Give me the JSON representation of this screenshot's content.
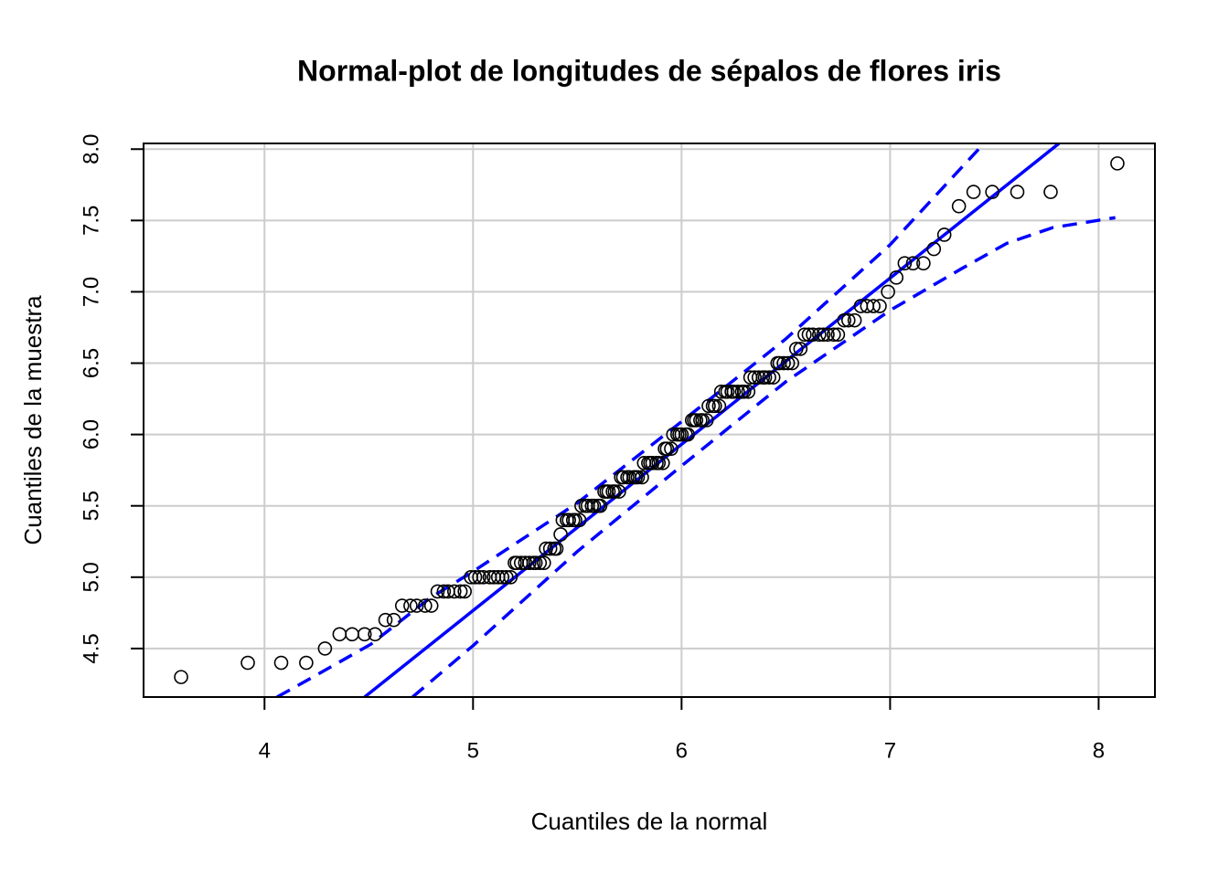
{
  "chart_data": {
    "type": "scatter",
    "title": "Normal-plot de longitudes de sépalos de flores iris",
    "xlabel": "Cuantiles de la normal",
    "ylabel": "Cuantiles de la muestra",
    "xlim": [
      3.42,
      8.27
    ],
    "ylim": [
      4.16,
      8.04
    ],
    "xticks": [
      4,
      5,
      6,
      7,
      8
    ],
    "yticks": [
      4.5,
      {
        "value": 5,
        "label": "5.0"
      },
      5.5,
      {
        "value": 6,
        "label": "6.0"
      },
      6.5,
      {
        "value": 7,
        "label": "7.0"
      },
      7.5,
      {
        "value": 8,
        "label": "8.0"
      }
    ],
    "grid": true,
    "color": "#000000",
    "x": [
      3.6,
      3.92,
      4.08,
      4.2,
      4.29,
      4.36,
      4.42,
      4.48,
      4.53,
      4.58,
      4.62,
      4.66,
      4.7,
      4.73,
      4.77,
      4.8,
      4.83,
      4.86,
      4.88,
      4.91,
      4.94,
      4.96,
      4.99,
      5.01,
      5.03,
      5.05,
      5.08,
      5.1,
      5.12,
      5.14,
      5.16,
      5.18,
      5.2,
      5.21,
      5.23,
      5.25,
      5.27,
      5.29,
      5.3,
      5.32,
      5.34,
      5.35,
      5.37,
      5.39,
      5.4,
      5.42,
      5.43,
      5.45,
      5.46,
      5.48,
      5.49,
      5.51,
      5.52,
      5.54,
      5.55,
      5.57,
      5.58,
      5.6,
      5.61,
      5.63,
      5.64,
      5.65,
      5.67,
      5.68,
      5.7,
      5.71,
      5.72,
      5.74,
      5.75,
      5.77,
      5.78,
      5.79,
      5.81,
      5.82,
      5.84,
      5.85,
      5.86,
      5.88,
      5.89,
      5.91,
      5.92,
      5.93,
      5.95,
      5.96,
      5.98,
      5.99,
      6.0,
      6.02,
      6.03,
      6.05,
      6.06,
      6.07,
      6.09,
      6.1,
      6.12,
      6.13,
      6.15,
      6.16,
      6.18,
      6.19,
      6.21,
      6.22,
      6.24,
      6.25,
      6.27,
      6.29,
      6.3,
      6.32,
      6.33,
      6.35,
      6.37,
      6.39,
      6.4,
      6.42,
      6.44,
      6.46,
      6.47,
      6.49,
      6.51,
      6.53,
      6.55,
      6.57,
      6.59,
      6.61,
      6.63,
      6.66,
      6.68,
      6.7,
      6.73,
      6.75,
      6.78,
      6.8,
      6.83,
      6.86,
      6.89,
      6.92,
      6.95,
      6.99,
      7.03,
      7.07,
      7.11,
      7.16,
      7.21,
      7.26,
      7.33,
      7.4,
      7.49,
      7.61,
      7.77,
      8.09
    ],
    "values": [
      4.3,
      4.4,
      4.4,
      4.4,
      4.5,
      4.6,
      4.6,
      4.6,
      4.6,
      4.7,
      4.7,
      4.8,
      4.8,
      4.8,
      4.8,
      4.8,
      4.9,
      4.9,
      4.9,
      4.9,
      4.9,
      4.9,
      5,
      5,
      5,
      5,
      5,
      5,
      5,
      5,
      5,
      5,
      5.1,
      5.1,
      5.1,
      5.1,
      5.1,
      5.1,
      5.1,
      5.1,
      5.1,
      5.2,
      5.2,
      5.2,
      5.2,
      5.3,
      5.4,
      5.4,
      5.4,
      5.4,
      5.4,
      5.4,
      5.5,
      5.5,
      5.5,
      5.5,
      5.5,
      5.5,
      5.5,
      5.6,
      5.6,
      5.6,
      5.6,
      5.6,
      5.6,
      5.7,
      5.7,
      5.7,
      5.7,
      5.7,
      5.7,
      5.7,
      5.7,
      5.8,
      5.8,
      5.8,
      5.8,
      5.8,
      5.8,
      5.8,
      5.9,
      5.9,
      5.9,
      6,
      6,
      6,
      6,
      6,
      6,
      6.1,
      6.1,
      6.1,
      6.1,
      6.1,
      6.1,
      6.2,
      6.2,
      6.2,
      6.2,
      6.3,
      6.3,
      6.3,
      6.3,
      6.3,
      6.3,
      6.3,
      6.3,
      6.3,
      6.4,
      6.4,
      6.4,
      6.4,
      6.4,
      6.4,
      6.4,
      6.5,
      6.5,
      6.5,
      6.5,
      6.5,
      6.6,
      6.6,
      6.7,
      6.7,
      6.7,
      6.7,
      6.7,
      6.7,
      6.7,
      6.7,
      6.8,
      6.8,
      6.8,
      6.9,
      6.9,
      6.9,
      6.9,
      7,
      7.1,
      7.2,
      7.2,
      7.2,
      7.3,
      7.4,
      7.6,
      7.7,
      7.7,
      7.7,
      7.7,
      7.9
    ],
    "reference_line": {
      "color": "#0000ff",
      "x": [
        4.48,
        7.81
      ],
      "y": [
        4.16,
        8.04
      ]
    },
    "envelope": {
      "color": "#0000ff",
      "dashed": true,
      "lines": [
        {
          "x": [
            4.06,
            4.22,
            4.51,
            4.79,
            5.0,
            5.5,
            6.0,
            6.5,
            7.0,
            7.45
          ],
          "y": [
            4.16,
            4.29,
            4.53,
            4.85,
            5.04,
            5.52,
            6.09,
            6.67,
            7.33,
            8.04
          ]
        },
        {
          "x": [
            4.71,
            5.0,
            5.5,
            6.0,
            6.5,
            7.0,
            7.34,
            7.56,
            7.78,
            8.08
          ],
          "y": [
            4.16,
            4.52,
            5.18,
            5.78,
            6.37,
            6.87,
            7.16,
            7.34,
            7.45,
            7.52
          ]
        }
      ]
    }
  }
}
